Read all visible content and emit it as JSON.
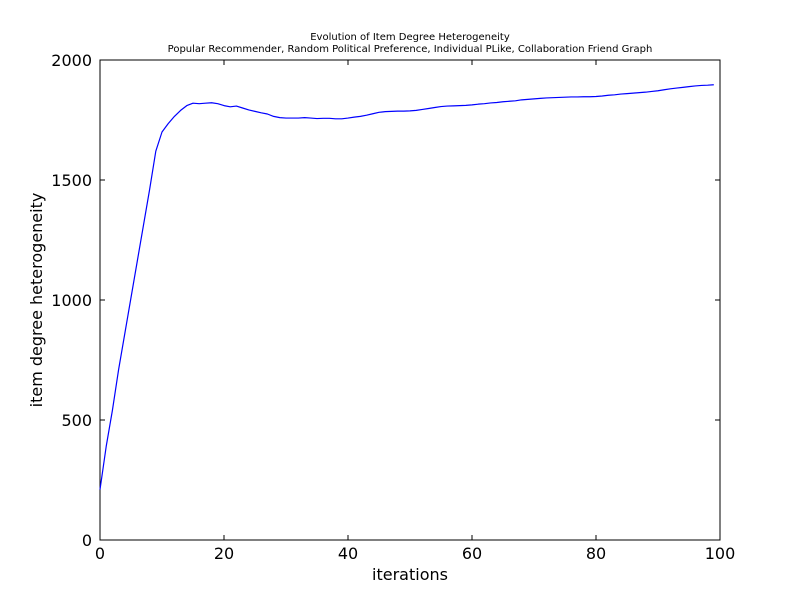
{
  "chart_data": {
    "type": "line",
    "title": "Evolution of Item Degree Heterogeneity",
    "subtitle": "Popular Recommender, Random Political Preference, Individual PLike, Collaboration Friend Graph",
    "xlabel": "iterations",
    "ylabel": "item degree heterogeneity",
    "xlim": [
      0,
      100
    ],
    "ylim": [
      0,
      2000
    ],
    "xticks": [
      0,
      20,
      40,
      60,
      80,
      100
    ],
    "yticks": [
      0,
      500,
      1000,
      1500,
      2000
    ],
    "grid": false,
    "legend": "none",
    "series_color": "#0000ff",
    "series": [
      {
        "x": [
          0,
          1,
          2,
          3,
          4,
          5,
          6,
          7,
          8,
          9,
          10,
          11,
          12,
          13,
          14,
          15,
          16,
          17,
          18,
          19,
          20,
          21,
          22,
          23,
          24,
          25,
          26,
          27,
          28,
          29,
          30,
          31,
          32,
          33,
          34,
          35,
          36,
          37,
          38,
          39,
          40,
          41,
          42,
          43,
          44,
          45,
          46,
          47,
          48,
          49,
          50,
          51,
          52,
          53,
          54,
          55,
          56,
          57,
          58,
          59,
          60,
          61,
          62,
          63,
          64,
          65,
          66,
          67,
          68,
          69,
          70,
          71,
          72,
          73,
          74,
          75,
          76,
          77,
          78,
          79,
          80,
          81,
          82,
          83,
          84,
          85,
          86,
          87,
          88,
          89,
          90,
          91,
          92,
          93,
          94,
          95,
          96,
          97,
          98,
          99
        ],
        "values": [
          210,
          390,
          540,
          710,
          860,
          1010,
          1160,
          1310,
          1460,
          1620,
          1700,
          1735,
          1765,
          1790,
          1810,
          1820,
          1818,
          1820,
          1822,
          1818,
          1810,
          1805,
          1808,
          1800,
          1792,
          1786,
          1780,
          1775,
          1765,
          1760,
          1758,
          1758,
          1758,
          1760,
          1758,
          1756,
          1757,
          1757,
          1755,
          1755,
          1758,
          1762,
          1765,
          1770,
          1776,
          1782,
          1785,
          1786,
          1787,
          1787,
          1788,
          1790,
          1794,
          1798,
          1802,
          1806,
          1808,
          1809,
          1810,
          1811,
          1813,
          1816,
          1818,
          1821,
          1823,
          1826,
          1828,
          1830,
          1834,
          1836,
          1838,
          1840,
          1842,
          1843,
          1844,
          1845,
          1846,
          1846,
          1847,
          1847,
          1848,
          1850,
          1853,
          1855,
          1858,
          1860,
          1862,
          1864,
          1866,
          1869,
          1872,
          1876,
          1880,
          1883,
          1886,
          1889,
          1892,
          1894,
          1895,
          1897
        ]
      }
    ]
  }
}
